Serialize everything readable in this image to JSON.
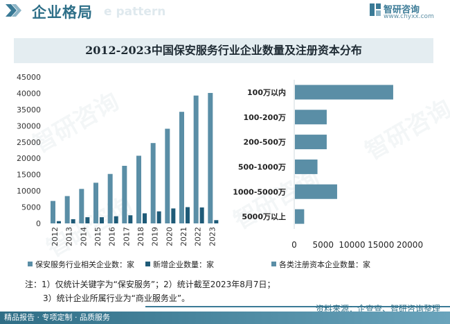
{
  "header": {
    "title": "企业格局",
    "watermark": "e pattern",
    "brand_name": "智研咨询",
    "brand_url": "www.chyxx.com"
  },
  "chart_title": "2012-2023中国保安服务行业企业数量及注册资本分布",
  "chart_data": [
    {
      "type": "bar",
      "categories": [
        "2012",
        "2013",
        "2014",
        "2015",
        "2016",
        "2017",
        "2018",
        "2019",
        "2020",
        "2021",
        "2022",
        "2023"
      ],
      "series": [
        {
          "name": "保安服务行业相关企业数：家",
          "color": "#5a8ea6",
          "values": [
            6900,
            8400,
            10600,
            12500,
            15200,
            17700,
            20800,
            24700,
            29100,
            34300,
            39300,
            40100
          ]
        },
        {
          "name": "新增企业数量：家",
          "color": "#1f5b78",
          "values": [
            700,
            1300,
            1900,
            1900,
            2200,
            2500,
            3100,
            3700,
            4600,
            5000,
            4900,
            1000
          ]
        }
      ],
      "ylim": [
        0,
        45000
      ],
      "yticks": [
        0,
        5000,
        10000,
        15000,
        20000,
        25000,
        30000,
        35000,
        40000,
        45000
      ]
    },
    {
      "type": "bar",
      "orientation": "horizontal",
      "categories": [
        "100万以内",
        "100-200万",
        "200-500万",
        "500-1000万",
        "1000-5000万",
        "5000万以上"
      ],
      "series": [
        {
          "name": "各类注册资本企业数量：家",
          "color": "#5a8ea6",
          "values": [
            17000,
            5500,
            5500,
            3900,
            7300,
            1600
          ]
        }
      ],
      "xlim": [
        0,
        20000
      ],
      "xticks": [
        0,
        5000,
        10000,
        15000,
        20000
      ]
    }
  ],
  "notes": {
    "line1": "注：1）仅统计关键字为“保安服务”；2）统计截至2023年8月7日；",
    "line2": "3）统计企业所属行业为“商业服务业”。"
  },
  "source": "资料来源：企查查、智研咨询整理",
  "footer": "精品报告 · 专项定制 · 品质服务",
  "watermark_text": "智研咨询"
}
